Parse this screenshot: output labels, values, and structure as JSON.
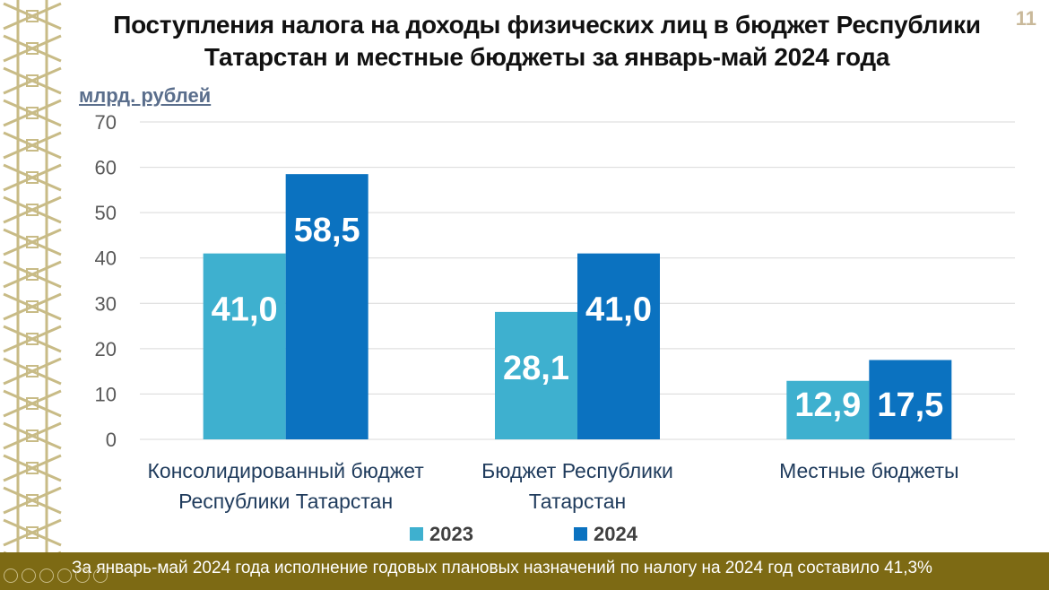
{
  "title_line1": "Поступления налога на доходы физических лиц в бюджет Республики",
  "title_line2": "Татарстан и местные бюджеты за январь-май 2024 года",
  "page_number": "11",
  "footer_text": "За январь-май 2024 года исполнение годовых плановых назначений по налогу на 2024 год составило 41,3%",
  "colors": {
    "series_2023": "#3eb0cf",
    "series_2024": "#0b72c0",
    "footer_bg": "#7d6a14",
    "ornament": "#c8bb86"
  },
  "chart_data": {
    "type": "bar",
    "ylabel": "млрд. рублей",
    "ylim": [
      0,
      70
    ],
    "yticks": [
      "0",
      "10",
      "20",
      "30",
      "40",
      "50",
      "60",
      "70"
    ],
    "grid": true,
    "legend_position": "bottom",
    "categories": [
      [
        "Консолидированный бюджет",
        "Республики Татарстан"
      ],
      [
        "Бюджет Республики",
        "Татарстан"
      ],
      [
        "Местные бюджеты"
      ]
    ],
    "series": [
      {
        "name": "2023",
        "values": [
          41.0,
          28.1,
          12.9
        ],
        "labels": [
          "41,0",
          "28,1",
          "12,9"
        ]
      },
      {
        "name": "2024",
        "values": [
          58.5,
          41.0,
          17.5
        ],
        "labels": [
          "58,5",
          "41,0",
          "17,5"
        ]
      }
    ]
  }
}
